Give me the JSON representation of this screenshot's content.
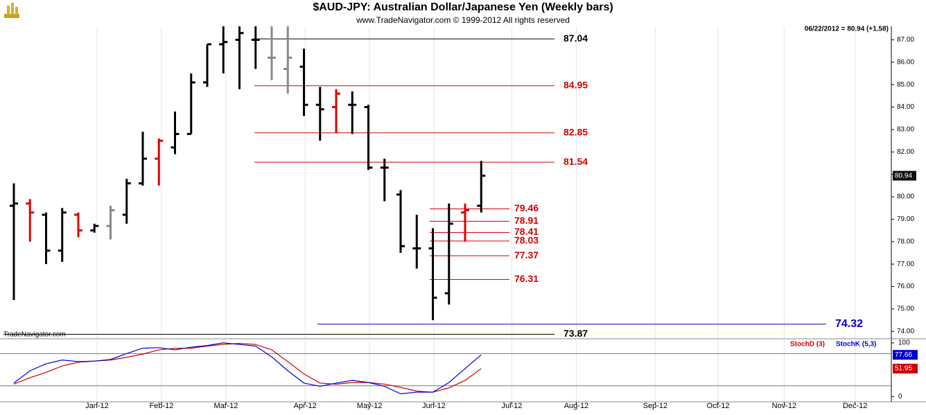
{
  "chart_data": [
    {
      "type": "ohlc",
      "title": "$AUD-JPY:  Australian Dollar/Japanese Yen  (Weekly bars)",
      "subtitle": "www.TradeNavigator.com © 1999-2012 All rights reserved",
      "header_note": "06/22/2012 = 80.94 (+1.58)",
      "source": "TradeNavigator.com",
      "open": [
        79.6,
        79.7,
        79.2,
        77.6,
        79.2,
        78.5,
        78.7,
        79.2,
        80.6,
        81.7,
        82.2,
        82.8,
        85.1,
        86.8,
        87.0,
        87.0,
        86.2,
        85.7,
        85.8,
        84.1,
        84.0,
        84.1,
        84.0,
        81.3,
        80.1,
        77.7,
        77.7,
        75.7,
        79.3,
        79.6
      ],
      "high": [
        80.6,
        79.9,
        79.3,
        79.5,
        79.3,
        78.8,
        79.6,
        80.8,
        82.9,
        82.6,
        83.8,
        85.5,
        86.8,
        87.6,
        87.6,
        87.6,
        87.6,
        87.6,
        86.6,
        84.9,
        84.8,
        84.7,
        84.1,
        81.7,
        80.3,
        79.2,
        78.6,
        79.7,
        79.7,
        81.6
      ],
      "low": [
        75.4,
        78.0,
        77.0,
        77.1,
        78.2,
        78.4,
        78.1,
        78.8,
        80.5,
        80.5,
        81.9,
        82.8,
        84.9,
        85.5,
        84.8,
        85.7,
        85.2,
        84.6,
        83.6,
        82.5,
        82.85,
        82.8,
        81.2,
        79.8,
        77.5,
        76.8,
        74.5,
        75.2,
        78.0,
        79.3
      ],
      "close": [
        79.7,
        79.3,
        77.6,
        79.3,
        78.5,
        78.7,
        79.4,
        80.6,
        81.7,
        82.5,
        82.8,
        85.1,
        86.8,
        86.9,
        87.3,
        87.0,
        86.2,
        86.2,
        84.1,
        83.9,
        84.6,
        84.1,
        81.3,
        81.3,
        77.8,
        77.7,
        75.5,
        78.8,
        79.4,
        80.94
      ],
      "colors": [
        "#000000",
        "#e00000",
        "#000000",
        "#000000",
        "#e00000",
        "#000000",
        "#888888",
        "#000000",
        "#000000",
        "#e00000",
        "#000000",
        "#000000",
        "#000000",
        "#000000",
        "#000000",
        "#000000",
        "#888888",
        "#888888",
        "#000000",
        "#000000",
        "#e00000",
        "#000000",
        "#000000",
        "#000000",
        "#000000",
        "#000000",
        "#000000",
        "#000000",
        "#e00000",
        "#000000"
      ],
      "last": 80.94,
      "levels": [
        {
          "value": 87.04,
          "color": "#000000"
        },
        {
          "value": 84.95,
          "color": "#d00000"
        },
        {
          "value": 82.85,
          "color": "#d00000"
        },
        {
          "value": 81.54,
          "color": "#d00000"
        },
        {
          "value": 79.46,
          "color": "#d00000"
        },
        {
          "value": 78.91,
          "color": "#d00000"
        },
        {
          "value": 78.41,
          "color": "#d00000"
        },
        {
          "value": 78.03,
          "color": "#d00000"
        },
        {
          "value": 77.37,
          "color": "#d00000"
        },
        {
          "value": 76.31,
          "color": "#d00000"
        },
        {
          "value": 74.32,
          "color": "#0000c0"
        },
        {
          "value": 73.87,
          "color": "#000000"
        }
      ],
      "ylim": [
        73.7,
        87.6
      ],
      "yticks": [
        {
          "value": 74,
          "label": "74.00"
        },
        {
          "value": 75,
          "label": "75.00"
        },
        {
          "value": 76,
          "label": "76.00"
        },
        {
          "value": 77,
          "label": "77.00"
        },
        {
          "value": 78,
          "label": "78.00"
        },
        {
          "value": 79,
          "label": "79.00"
        },
        {
          "value": 80,
          "label": "80.00"
        },
        {
          "value": 81,
          "label": "81.00"
        },
        {
          "value": 82,
          "label": "82.00"
        },
        {
          "value": 83,
          "label": "83.00"
        },
        {
          "value": 84,
          "label": "84.00"
        },
        {
          "value": 85,
          "label": "85.00"
        },
        {
          "value": 86,
          "label": "86.00"
        },
        {
          "value": 87,
          "label": "87.00"
        }
      ],
      "xlim": [
        -0.86,
        54.45
      ],
      "xticks": [
        {
          "value": 5.16,
          "label": "Jan-12"
        },
        {
          "value": 9.16,
          "label": "Feb-12"
        },
        {
          "value": 13.16,
          "label": "Mar-12"
        },
        {
          "value": 18.07,
          "label": "Apr-12"
        },
        {
          "value": 22.07,
          "label": "May-12"
        },
        {
          "value": 26.06,
          "label": "Jun-12"
        },
        {
          "value": 30.9,
          "label": "Jul-12"
        },
        {
          "value": 34.9,
          "label": "Aug-12"
        },
        {
          "value": 39.8,
          "label": "Sep-12"
        },
        {
          "value": 43.7,
          "label": "Oct-12"
        },
        {
          "value": 47.8,
          "label": "Nov-12"
        },
        {
          "value": 52.2,
          "label": "Dec-12"
        }
      ],
      "grid": true
    },
    {
      "type": "line",
      "series": [
        {
          "name": "StochD (3)",
          "color": "#d00000",
          "values": [
            23,
            35,
            45,
            57,
            64,
            66,
            68,
            73,
            79,
            87,
            90,
            90,
            94,
            97,
            99,
            97,
            87,
            65,
            42,
            25,
            23,
            26,
            26,
            23,
            17,
            10,
            8,
            16,
            30,
            51.95
          ]
        },
        {
          "name": "StochK (5,3)",
          "color": "#0000d0",
          "values": [
            25,
            48,
            61,
            68,
            65,
            66,
            69,
            80,
            90,
            91,
            87,
            92,
            95,
            100,
            97,
            94,
            74,
            48,
            25,
            19,
            25,
            30,
            26,
            19,
            5,
            8,
            8,
            26,
            52,
            77.66
          ]
        }
      ],
      "levels": [
        80,
        20
      ],
      "ylim": [
        -10,
        105
      ],
      "yticks": [
        0,
        100
      ]
    }
  ]
}
